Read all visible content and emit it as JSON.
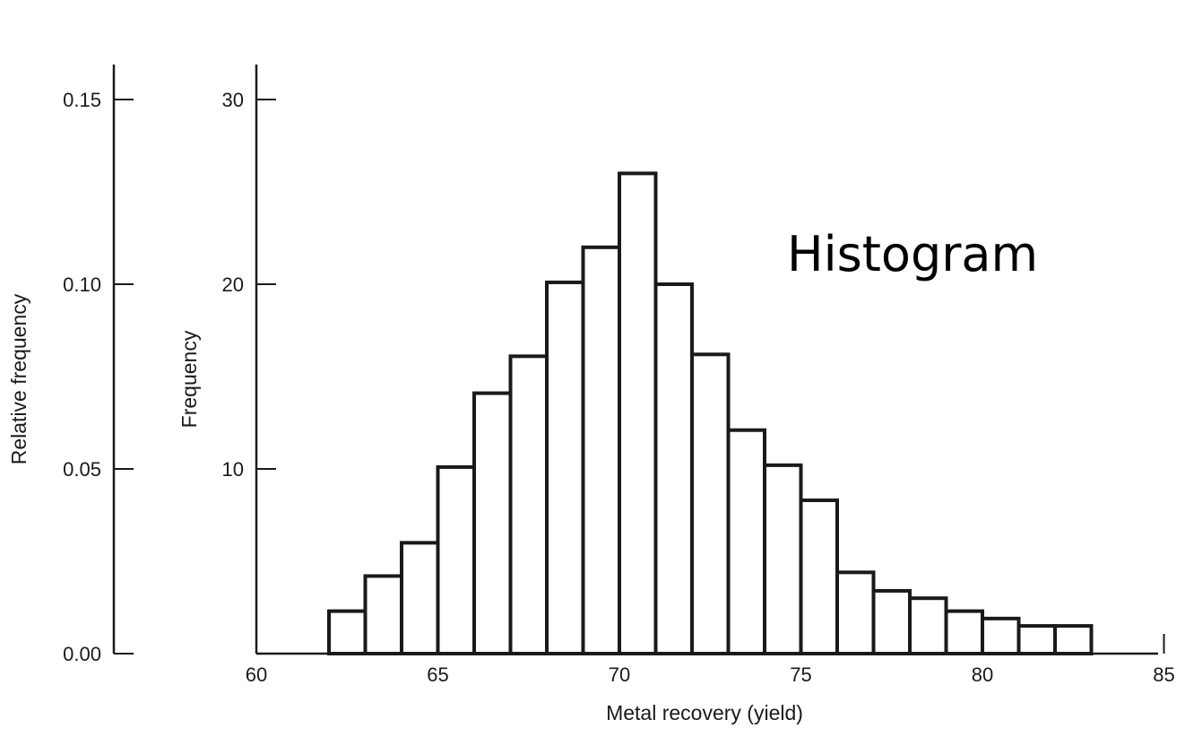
{
  "chart_data": {
    "type": "bar",
    "annotation": "Histogram",
    "xlabel": "Metal recovery (yield)",
    "ylabel": "Frequency",
    "ylabel_secondary": "Relative frequency",
    "xlim": [
      60,
      85
    ],
    "ylim": [
      0,
      30
    ],
    "ylim_secondary": [
      0.0,
      0.15
    ],
    "x_ticks": [
      "60",
      "65",
      "70",
      "75",
      "80",
      "85"
    ],
    "y_ticks": [
      "10",
      "20",
      "30"
    ],
    "y_ticks_secondary": [
      "0.00",
      "0.05",
      "0.10",
      "0.15"
    ],
    "bin_width": 1,
    "bins_start": [
      62,
      63,
      64,
      65,
      66,
      67,
      68,
      69,
      70,
      71,
      72,
      73,
      74,
      75,
      76,
      77,
      78,
      79,
      80,
      81,
      82
    ],
    "values": [
      2.3,
      4.2,
      6,
      10.1,
      14.1,
      16.1,
      20.1,
      22,
      26,
      20,
      16.2,
      12.1,
      10.2,
      8.3,
      4.4,
      3.4,
      3,
      2.3,
      1.9,
      1.5,
      1.5
    ],
    "grid": false,
    "legend": "none"
  }
}
